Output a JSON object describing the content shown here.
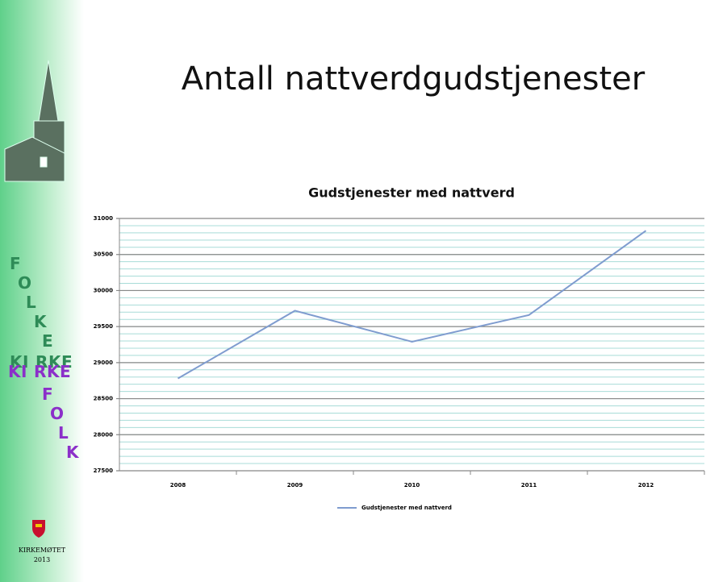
{
  "slide_title": "Antall nattverdgudstjenester",
  "sidebar": {
    "words": [
      "FOLKE",
      "KIRKE",
      "KIRKE",
      "FOLK"
    ],
    "footer": [
      "KIRKEMØTET",
      "2013"
    ]
  },
  "chart_data": {
    "type": "line",
    "title": "Gudstjenester med nattverd",
    "categories": [
      "2008",
      "2009",
      "2010",
      "2011",
      "2012"
    ],
    "series": [
      {
        "name": "Gudstjenester med nattverd",
        "color": "#7f9ccf",
        "values": [
          28780,
          29720,
          29290,
          29660,
          30830
        ]
      }
    ],
    "ylim": [
      27500,
      31000
    ],
    "yticks": [
      27500,
      28000,
      28500,
      29000,
      29500,
      30000,
      30500,
      31000
    ],
    "grid": true,
    "minor_grid_step": 100,
    "legend": "bottom"
  }
}
